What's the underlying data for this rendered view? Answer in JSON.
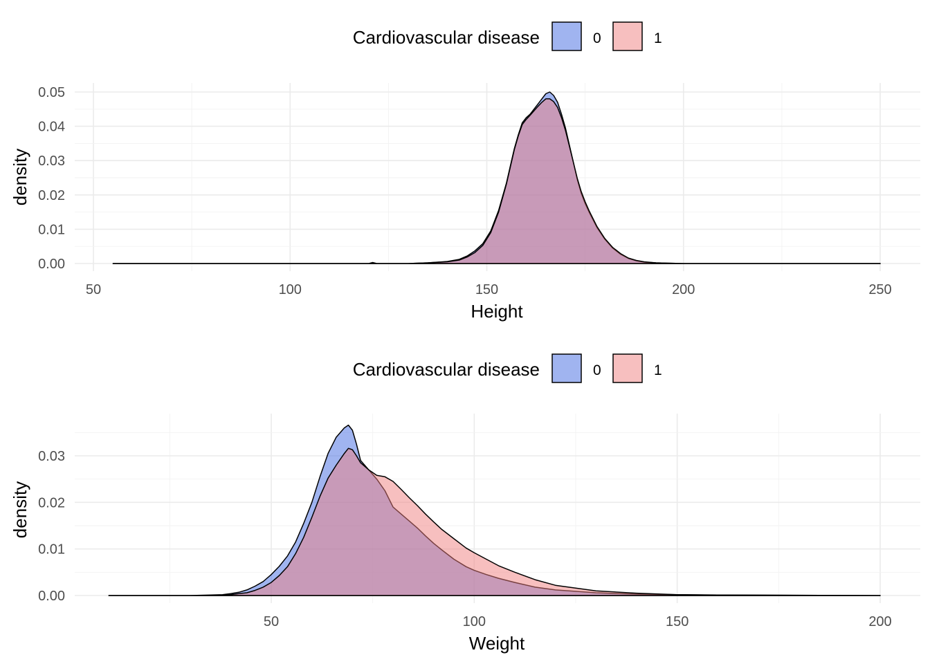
{
  "colors": {
    "group_0_fill": "#4169E1",
    "group_1_fill": "#F08080",
    "outline": "#000000",
    "fill_alpha": 0.5
  },
  "chart_data": [
    {
      "type": "area",
      "title": "",
      "xlabel": "Height",
      "ylabel": "density",
      "xlim": [
        50,
        250
      ],
      "ylim": [
        0,
        0.05
      ],
      "x_ticks": [
        50,
        100,
        150,
        200,
        250
      ],
      "x_tick_labels": [
        "50",
        "100",
        "150",
        "200",
        "250"
      ],
      "y_ticks": [
        0,
        0.01,
        0.02,
        0.03,
        0.04,
        0.05
      ],
      "y_tick_labels": [
        "0.00",
        "0.01",
        "0.02",
        "0.03",
        "0.04",
        "0.05"
      ],
      "grid": true,
      "legend": {
        "title": "Cardiovascular disease",
        "position": "top",
        "entries": [
          "0",
          "1"
        ]
      },
      "series": [
        {
          "name": "0",
          "x": [
            55,
            100,
            120,
            121,
            122,
            130,
            135,
            140,
            143,
            145,
            147,
            149,
            151,
            153,
            155,
            156,
            157,
            158,
            159,
            160,
            161,
            162,
            163,
            164,
            165,
            166,
            167,
            168,
            169,
            170,
            171,
            172,
            173,
            174,
            175,
            176,
            178,
            180,
            182,
            184,
            186,
            188,
            190,
            193,
            196,
            200,
            210,
            250
          ],
          "y": [
            0,
            0,
            0,
            0.0003,
            0,
            0,
            0.0002,
            0.0006,
            0.0012,
            0.0022,
            0.0037,
            0.0058,
            0.0095,
            0.0155,
            0.0235,
            0.0285,
            0.0335,
            0.0375,
            0.041,
            0.0425,
            0.0435,
            0.045,
            0.0465,
            0.048,
            0.0495,
            0.05,
            0.049,
            0.047,
            0.0435,
            0.0395,
            0.0345,
            0.0295,
            0.0245,
            0.0205,
            0.0175,
            0.015,
            0.0105,
            0.0071,
            0.0045,
            0.0027,
            0.0015,
            0.0008,
            0.0004,
            0.0002,
            0.0001,
            0,
            0,
            0
          ]
        },
        {
          "name": "1",
          "x": [
            55,
            100,
            120,
            121,
            122,
            130,
            135,
            140,
            143,
            145,
            147,
            149,
            151,
            153,
            155,
            156,
            157,
            158,
            159,
            160,
            161,
            162,
            163,
            164,
            165,
            166,
            167,
            168,
            169,
            170,
            171,
            172,
            173,
            174,
            175,
            176,
            178,
            180,
            182,
            184,
            186,
            188,
            190,
            193,
            196,
            200,
            210,
            250
          ],
          "y": [
            0,
            0,
            0,
            0.0002,
            0,
            0,
            0.0002,
            0.0005,
            0.001,
            0.0019,
            0.0032,
            0.0053,
            0.009,
            0.015,
            0.0232,
            0.0282,
            0.0332,
            0.0372,
            0.0405,
            0.042,
            0.0432,
            0.0445,
            0.0458,
            0.047,
            0.048,
            0.048,
            0.0472,
            0.0455,
            0.0425,
            0.0388,
            0.0342,
            0.0295,
            0.0248,
            0.021,
            0.018,
            0.0154,
            0.0108,
            0.0073,
            0.0047,
            0.0029,
            0.0016,
            0.0009,
            0.0005,
            0.0002,
            0.0001,
            0,
            0,
            0
          ]
        }
      ]
    },
    {
      "type": "area",
      "title": "",
      "xlabel": "Weight",
      "ylabel": "density",
      "xlim": [
        10,
        200
      ],
      "ylim": [
        0,
        0.037
      ],
      "x_ticks": [
        50,
        100,
        150,
        200
      ],
      "x_tick_labels": [
        "50",
        "100",
        "150",
        "200"
      ],
      "y_ticks": [
        0,
        0.01,
        0.02,
        0.03
      ],
      "y_tick_labels": [
        "0.00",
        "0.01",
        "0.02",
        "0.03"
      ],
      "grid": true,
      "legend": {
        "title": "Cardiovascular disease",
        "position": "top",
        "entries": [
          "0",
          "1"
        ]
      },
      "series": [
        {
          "name": "0",
          "x": [
            10,
            30,
            35,
            38,
            40,
            42,
            44,
            46,
            48,
            50,
            52,
            54,
            56,
            58,
            60,
            62,
            64,
            66,
            68,
            69,
            70,
            71,
            72,
            74,
            76,
            78,
            80,
            82,
            84,
            86,
            88,
            90,
            92,
            95,
            98,
            100,
            103,
            106,
            110,
            115,
            120,
            130,
            140,
            150,
            160,
            200
          ],
          "y": [
            0,
            0,
            0.0001,
            0.0002,
            0.0004,
            0.0007,
            0.0012,
            0.002,
            0.003,
            0.0045,
            0.0063,
            0.0085,
            0.0115,
            0.0155,
            0.02,
            0.0255,
            0.0305,
            0.034,
            0.036,
            0.0366,
            0.0355,
            0.0325,
            0.029,
            0.027,
            0.025,
            0.0225,
            0.019,
            0.0175,
            0.016,
            0.0145,
            0.0128,
            0.0112,
            0.0098,
            0.0078,
            0.0062,
            0.0054,
            0.0045,
            0.0037,
            0.0028,
            0.0018,
            0.0012,
            0.0006,
            0.0003,
            0.0002,
            0.0001,
            0
          ]
        },
        {
          "name": "1",
          "x": [
            10,
            30,
            35,
            38,
            40,
            42,
            44,
            46,
            48,
            50,
            52,
            54,
            56,
            58,
            60,
            62,
            64,
            66,
            68,
            69,
            70,
            71,
            72,
            74,
            76,
            78,
            80,
            82,
            84,
            86,
            88,
            90,
            92,
            95,
            98,
            100,
            103,
            106,
            110,
            115,
            120,
            130,
            140,
            150,
            160,
            200
          ],
          "y": [
            0,
            0,
            0,
            0.0001,
            0.0002,
            0.0004,
            0.0006,
            0.0011,
            0.0018,
            0.0028,
            0.0043,
            0.0062,
            0.009,
            0.0125,
            0.0168,
            0.0213,
            0.0252,
            0.028,
            0.0305,
            0.0316,
            0.0313,
            0.03,
            0.0285,
            0.027,
            0.0258,
            0.0255,
            0.0245,
            0.0228,
            0.021,
            0.0193,
            0.0175,
            0.0158,
            0.0142,
            0.0122,
            0.0102,
            0.0092,
            0.0078,
            0.0064,
            0.005,
            0.0034,
            0.0022,
            0.001,
            0.0005,
            0.0002,
            0.0001,
            0
          ]
        }
      ]
    }
  ]
}
